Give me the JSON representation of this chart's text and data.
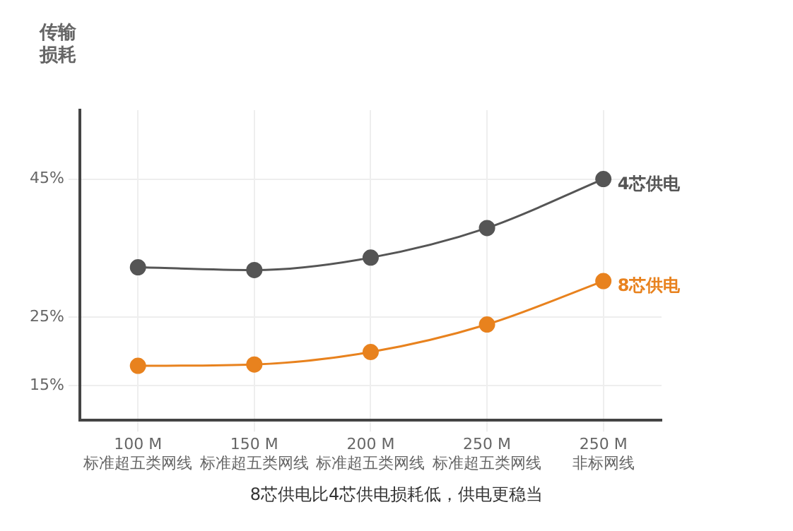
{
  "chart_data": {
    "type": "line",
    "ylabel": "传输损耗",
    "categories": [
      "100 M\n标准超五类网线",
      "150 M\n标准超五类网线",
      "200 M\n标准超五类网线",
      "250 M\n标准超五类网线",
      "250 M\n非标网线"
    ],
    "series": [
      {
        "name": "4芯供电",
        "color": "#555555",
        "values": [
          32.2,
          31.8,
          33.6,
          37.9,
          45
        ]
      },
      {
        "name": "8芯供电",
        "color": "#e8821e",
        "values": [
          17.9,
          18.1,
          19.9,
          23.9,
          30.2
        ]
      }
    ],
    "ylim": [
      10,
      55
    ],
    "yticks": [
      {
        "value": 15,
        "label": "15%"
      },
      {
        "value": 25,
        "label": "25%"
      },
      {
        "value": 45,
        "label": "45%"
      }
    ],
    "grid": true,
    "legend": false,
    "marker": "circle",
    "line_style": "solid",
    "annotations": [
      "8芯供电比4芯供电损耗低，供电更稳当"
    ]
  }
}
